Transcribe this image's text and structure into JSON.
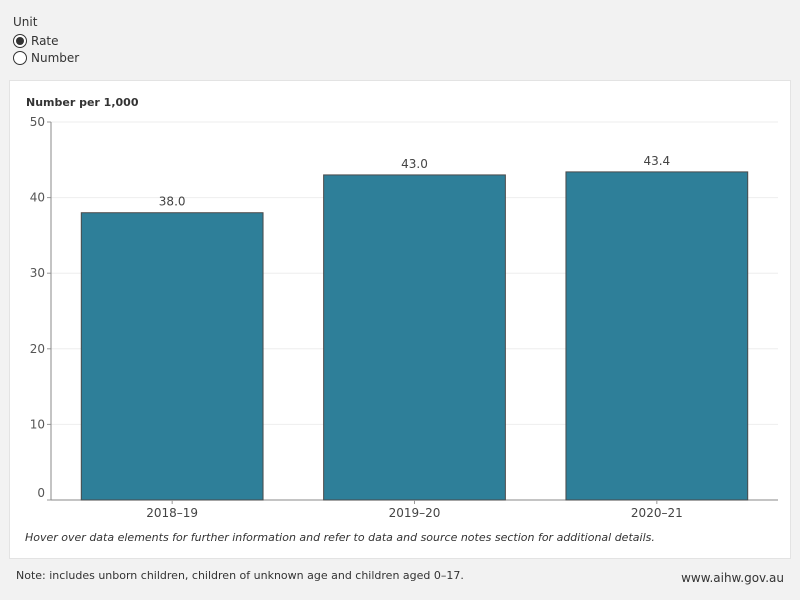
{
  "unit": {
    "title": "Unit",
    "options": [
      {
        "label": "Rate",
        "selected": true
      },
      {
        "label": "Number",
        "selected": false
      }
    ]
  },
  "chart_data": {
    "type": "bar",
    "title": "",
    "xlabel": "",
    "ylabel": "Number per 1,000",
    "categories": [
      "2018–19",
      "2019–20",
      "2020–21"
    ],
    "values": [
      38.0,
      43.0,
      43.4
    ],
    "data_labels": [
      "38.0",
      "43.0",
      "43.4"
    ],
    "ylim": [
      0,
      50
    ],
    "yticks": [
      0,
      10,
      20,
      30,
      40,
      50
    ],
    "grid": true,
    "bar_color": "#2e7f99"
  },
  "notes": {
    "hover": "Hover over data elements for further information and refer to data and source notes section for additional details.",
    "footer": "Note: includes unborn children, children of unknown age and children aged 0–17.",
    "site": "www.aihw.gov.au"
  }
}
